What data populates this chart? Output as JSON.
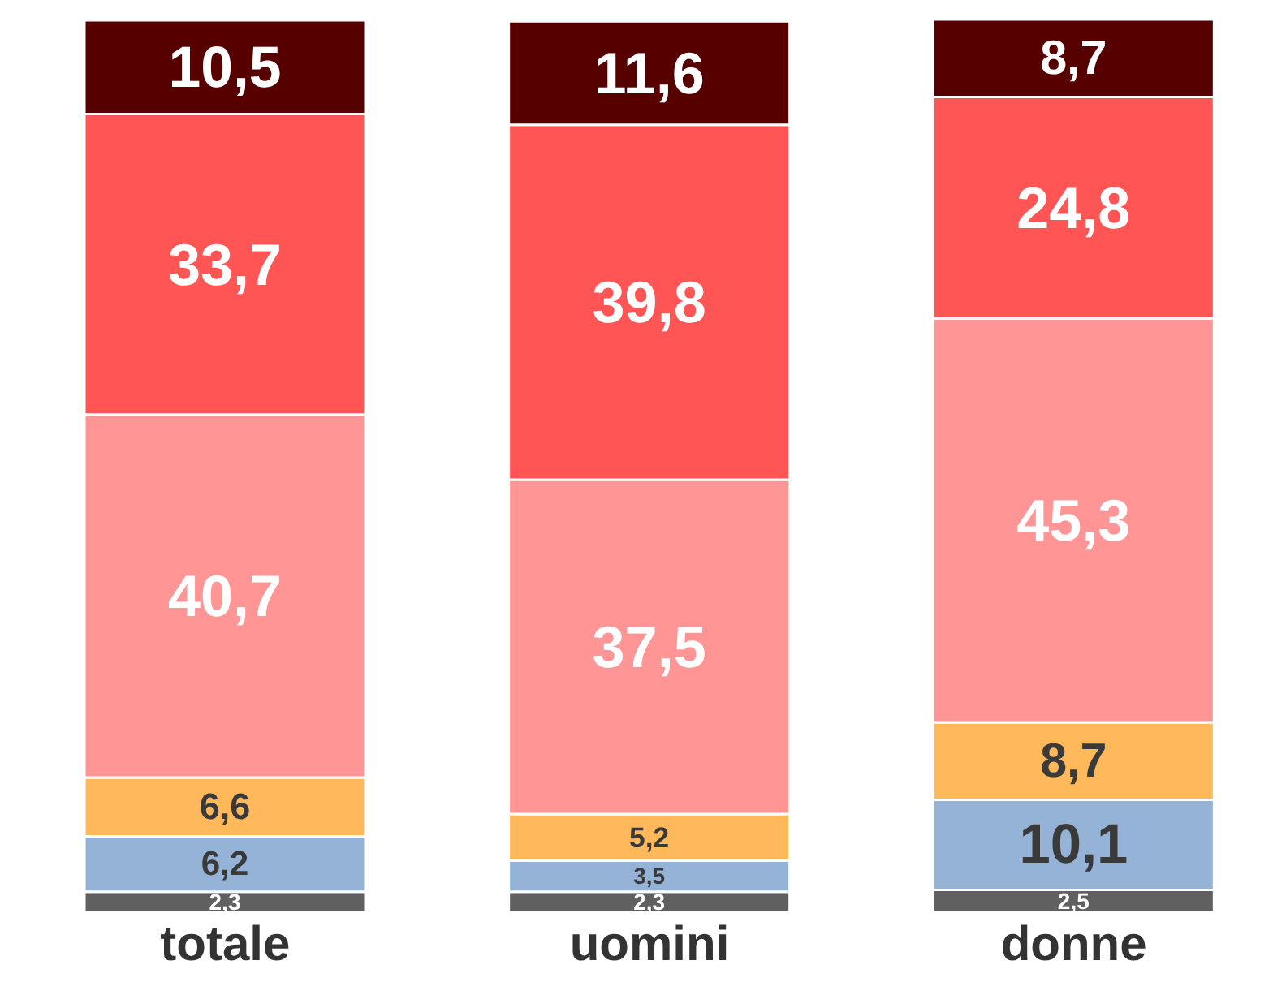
{
  "chart_data": {
    "type": "bar",
    "stacked": true,
    "categories": [
      "totale",
      "uomini",
      "donne"
    ],
    "data_labels": true,
    "legend": false,
    "grid": false,
    "series": [
      {
        "color": "#606060",
        "values": [
          2.3,
          2.3,
          2.5
        ],
        "value_labels": [
          "2,3",
          "2,3",
          "2,5"
        ]
      },
      {
        "color": "#95b3d7",
        "values": [
          6.2,
          3.5,
          10.1
        ],
        "value_labels": [
          "6,2",
          "3,5",
          "10,1"
        ]
      },
      {
        "color": "#ffb85a",
        "values": [
          6.6,
          5.2,
          8.7
        ],
        "value_labels": [
          "6,6",
          "5,2",
          "8,7"
        ]
      },
      {
        "color": "#ff9595",
        "values": [
          40.7,
          37.5,
          45.3
        ],
        "value_labels": [
          "40,7",
          "37,5",
          "45,3"
        ]
      },
      {
        "color": "#ff5555",
        "values": [
          33.7,
          39.8,
          24.8
        ],
        "value_labels": [
          "33,7",
          "39,8",
          "24,8"
        ]
      },
      {
        "color": "#560000",
        "values": [
          10.5,
          11.6,
          8.7
        ],
        "value_labels": [
          "10,5",
          "11,6",
          "8,7"
        ]
      }
    ]
  }
}
